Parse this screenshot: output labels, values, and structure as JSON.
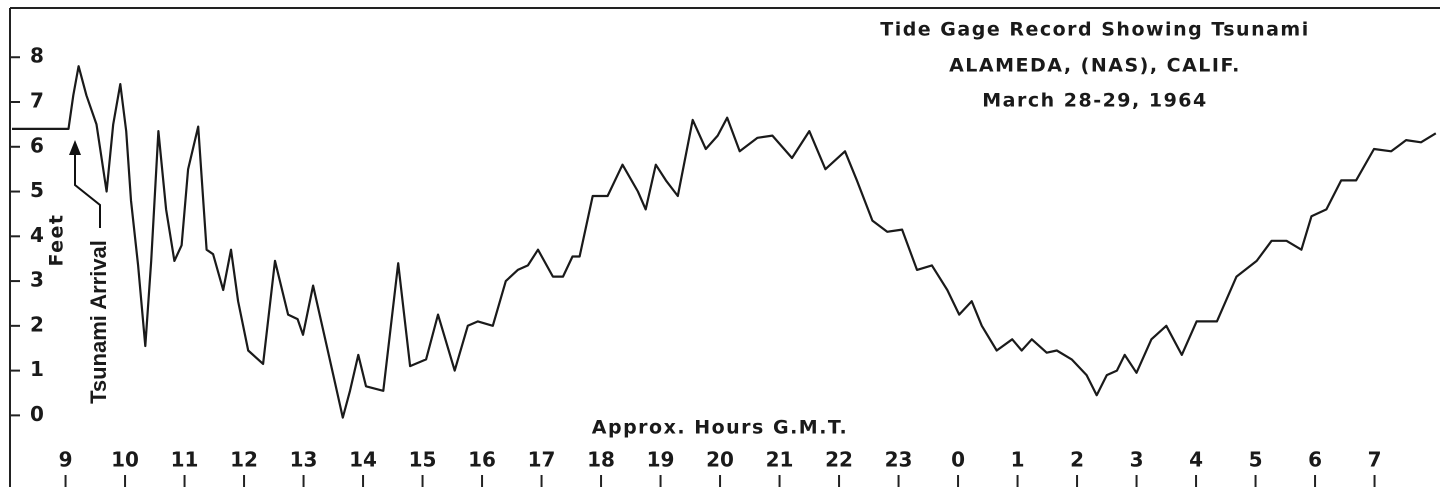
{
  "chart_data": {
    "type": "line",
    "title_lines": [
      "Tide Gage Record Showing Tsunami",
      "ALAMEDA, (NAS), CALIF.",
      "March 28-29, 1964"
    ],
    "xlabel": "Approx. Hours G.M.T.",
    "ylabel": "Feet",
    "annotation": "Tsunami Arrival",
    "color": "#1a1a1a",
    "xlim": [
      8.1,
      32.1
    ],
    "ylim": [
      -1.6,
      9.1
    ],
    "xticks": [
      9,
      10,
      11,
      12,
      13,
      14,
      15,
      16,
      17,
      18,
      19,
      20,
      21,
      22,
      23,
      {
        "value": 24,
        "label": "0"
      },
      {
        "value": 25,
        "label": "1"
      },
      {
        "value": 26,
        "label": "2"
      },
      {
        "value": 27,
        "label": "3"
      },
      {
        "value": 28,
        "label": "4"
      },
      {
        "value": 29,
        "label": "5"
      },
      {
        "value": 30,
        "label": "6"
      },
      {
        "value": 31,
        "label": "7"
      }
    ],
    "yticks": [
      0,
      1,
      2,
      3,
      4,
      5,
      6,
      7,
      8
    ],
    "x": [
      8.1,
      9.05,
      9.13,
      9.22,
      9.35,
      9.52,
      9.69,
      9.8,
      9.92,
      10.02,
      10.1,
      10.22,
      10.34,
      10.44,
      10.56,
      10.69,
      10.83,
      10.95,
      11.06,
      11.23,
      11.37,
      11.48,
      11.65,
      11.78,
      11.9,
      12.07,
      12.32,
      12.52,
      12.74,
      12.9,
      12.99,
      13.16,
      13.33,
      13.5,
      13.66,
      13.78,
      13.92,
      14.05,
      14.34,
      14.59,
      14.79,
      15.06,
      15.26,
      15.54,
      15.76,
      15.93,
      16.18,
      16.4,
      16.6,
      16.77,
      16.94,
      17.19,
      17.36,
      17.52,
      17.64,
      17.86,
      18.11,
      18.36,
      18.62,
      18.75,
      18.92,
      19.09,
      19.29,
      19.54,
      19.76,
      19.96,
      20.12,
      20.33,
      20.63,
      20.88,
      21.21,
      21.5,
      21.77,
      22.1,
      22.3,
      22.56,
      22.81,
      23.06,
      23.31,
      23.56,
      23.82,
      24.02,
      24.23,
      24.4,
      24.65,
      24.91,
      25.07,
      25.24,
      25.49,
      25.66,
      25.91,
      26.16,
      26.33,
      26.5,
      26.67,
      26.8,
      27.0,
      27.25,
      27.5,
      27.76,
      28.01,
      28.35,
      28.68,
      29.02,
      29.27,
      29.52,
      29.77,
      29.94,
      30.19,
      30.44,
      30.69,
      30.99,
      31.28,
      31.53,
      31.78,
      32.03
    ],
    "values": [
      6.4,
      6.4,
      7.15,
      7.8,
      7.15,
      6.5,
      5.0,
      6.5,
      7.4,
      6.35,
      4.8,
      3.35,
      1.55,
      3.45,
      6.35,
      4.6,
      3.45,
      3.8,
      5.5,
      6.45,
      3.7,
      3.6,
      2.8,
      3.7,
      2.55,
      1.45,
      1.15,
      3.45,
      2.25,
      2.15,
      1.8,
      2.9,
      1.9,
      0.9,
      -0.05,
      0.55,
      1.35,
      0.65,
      0.55,
      3.4,
      1.1,
      1.25,
      2.25,
      1.0,
      2.0,
      2.1,
      2.0,
      3.0,
      3.25,
      3.35,
      3.7,
      3.1,
      3.1,
      3.55,
      3.55,
      4.9,
      4.9,
      5.6,
      5.0,
      4.6,
      5.6,
      5.25,
      4.9,
      6.6,
      5.95,
      6.25,
      6.65,
      5.9,
      6.2,
      6.25,
      5.75,
      6.35,
      5.5,
      5.9,
      5.25,
      4.35,
      4.1,
      4.15,
      3.25,
      3.35,
      2.8,
      2.25,
      2.55,
      2.0,
      1.45,
      1.7,
      1.45,
      1.7,
      1.4,
      1.45,
      1.25,
      0.9,
      0.45,
      0.9,
      1.0,
      1.35,
      0.95,
      1.7,
      2.0,
      1.35,
      2.1,
      2.1,
      3.1,
      3.45,
      3.9,
      3.9,
      3.7,
      4.45,
      4.6,
      5.25,
      5.25,
      5.95,
      5.9,
      6.15,
      6.1,
      6.3
    ]
  }
}
